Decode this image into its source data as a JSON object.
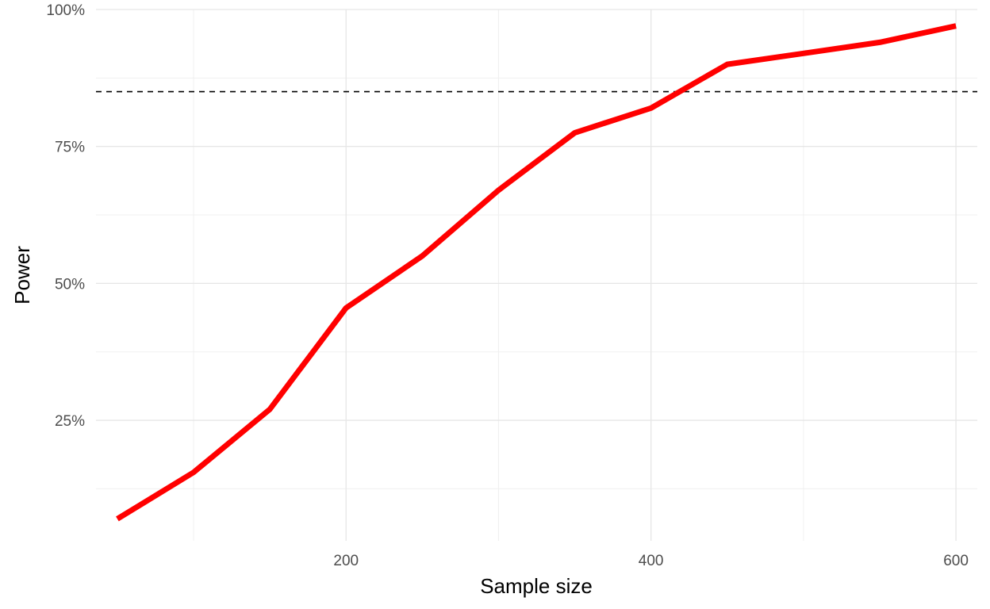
{
  "chart_data": {
    "type": "line",
    "title": "",
    "xlabel": "Sample size",
    "ylabel": "Power",
    "xlim": [
      36,
      614
    ],
    "ylim": [
      0.03,
      1.0
    ],
    "x_ticks": [
      200,
      400,
      600
    ],
    "x_tick_labels": [
      "200",
      "400",
      "600"
    ],
    "x_minor_ticks": [
      100,
      300,
      500
    ],
    "y_ticks": [
      0.25,
      0.5,
      0.75,
      1.0
    ],
    "y_tick_labels": [
      "25%",
      "50%",
      "75%",
      "100%"
    ],
    "y_minor_ticks": [
      0.125,
      0.375,
      0.625,
      0.875
    ],
    "grid": true,
    "legend": "none",
    "series": [
      {
        "color": "#ff0000",
        "x": [
          50,
          100,
          150,
          200,
          250,
          300,
          350,
          400,
          450,
          500,
          550,
          600
        ],
        "y": [
          0.07,
          0.155,
          0.27,
          0.455,
          0.55,
          0.67,
          0.775,
          0.82,
          0.9,
          0.92,
          0.94,
          0.97
        ]
      }
    ],
    "hlines": [
      {
        "y": 0.85,
        "style": "dashed",
        "color": "#000000"
      }
    ]
  }
}
